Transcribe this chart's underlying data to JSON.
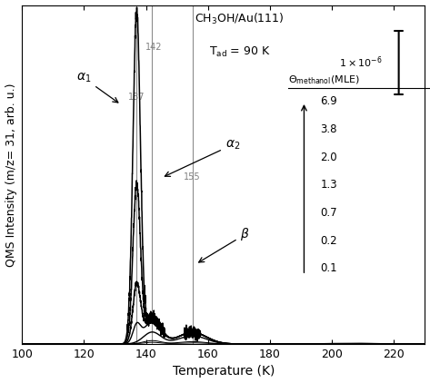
{
  "xlabel": "Temperature (K)",
  "ylabel": "QMS Intensity (m/z= 31, arb. u.)",
  "xlim": [
    100,
    230
  ],
  "coverages": [
    0.1,
    0.2,
    0.7,
    1.3,
    2.0,
    3.8,
    6.9
  ],
  "vlines": [
    137,
    142,
    155
  ],
  "vline_labels": [
    "137",
    "142",
    "155"
  ],
  "legend_values": [
    "6.9",
    "3.8",
    "2.0",
    "1.3",
    "0.7",
    "0.2",
    "0.1"
  ],
  "xticks": [
    100,
    120,
    140,
    160,
    180,
    200,
    220
  ]
}
